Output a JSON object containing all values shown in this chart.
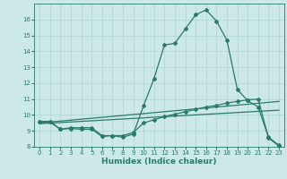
{
  "bg_color": "#cce8e8",
  "grid_color": "#aed4d4",
  "line_color": "#2a7a6a",
  "xlabel": "Humidex (Indice chaleur)",
  "xlim": [
    -0.5,
    23.5
  ],
  "ylim": [
    8,
    17
  ],
  "yticks": [
    8,
    9,
    10,
    11,
    12,
    13,
    14,
    15,
    16
  ],
  "xticks": [
    0,
    1,
    2,
    3,
    4,
    5,
    6,
    7,
    8,
    9,
    10,
    11,
    12,
    13,
    14,
    15,
    16,
    17,
    18,
    19,
    20,
    21,
    22,
    23
  ],
  "curve1_x": [
    0,
    1,
    2,
    3,
    4,
    5,
    6,
    7,
    8,
    9,
    10,
    11,
    12,
    13,
    14,
    15,
    16,
    17,
    18,
    19,
    20,
    21,
    22,
    23
  ],
  "curve1_y": [
    9.6,
    9.6,
    9.1,
    9.2,
    9.2,
    9.2,
    8.7,
    8.7,
    8.6,
    8.8,
    10.6,
    12.3,
    14.4,
    14.5,
    15.4,
    16.3,
    16.6,
    15.9,
    14.7,
    11.6,
    10.9,
    10.5,
    8.6,
    8.1
  ],
  "curve2_x": [
    0,
    1,
    2,
    3,
    4,
    5,
    6,
    7,
    8,
    9,
    10,
    11,
    12,
    13,
    14,
    15,
    16,
    17,
    18,
    19,
    20,
    21,
    22,
    23
  ],
  "curve2_y": [
    9.55,
    9.55,
    9.1,
    9.15,
    9.1,
    9.1,
    8.65,
    8.7,
    8.7,
    8.9,
    9.5,
    9.7,
    9.9,
    10.05,
    10.2,
    10.35,
    10.5,
    10.6,
    10.75,
    10.85,
    10.95,
    11.0,
    8.55,
    8.05
  ],
  "curve3_x": [
    0,
    23
  ],
  "curve3_y": [
    9.5,
    10.85
  ],
  "curve4_x": [
    0,
    23
  ],
  "curve4_y": [
    9.45,
    10.3
  ]
}
